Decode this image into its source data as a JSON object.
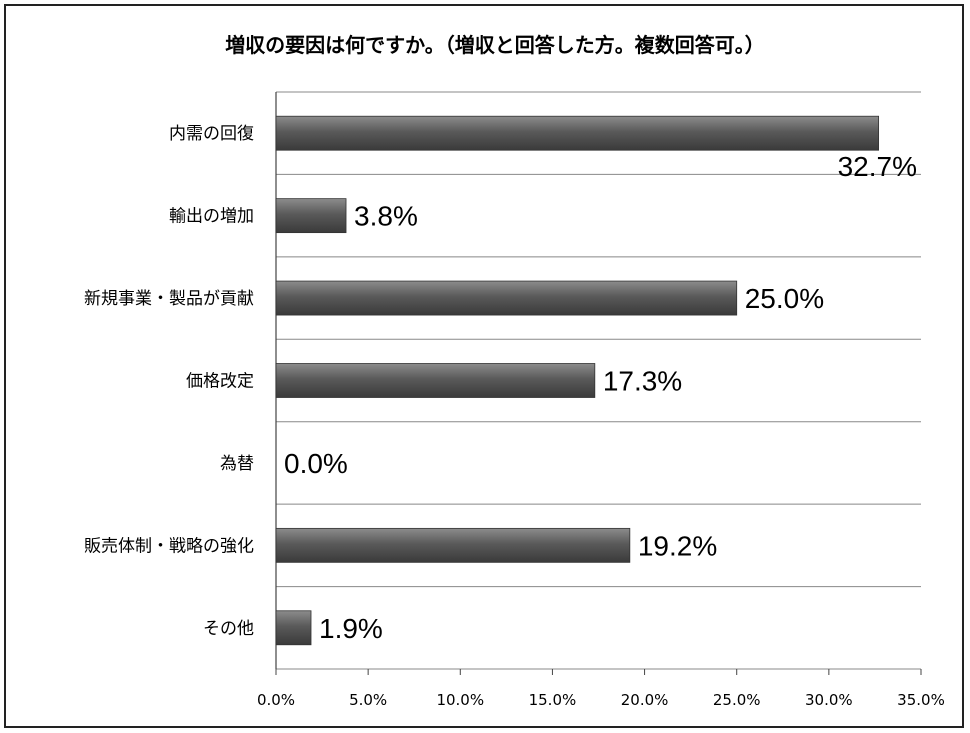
{
  "chart_data": {
    "type": "bar",
    "orientation": "horizontal",
    "title": "増収の要因は何ですか。（増収と回答した方。複数回答可。）",
    "categories": [
      "内需の回復",
      "輸出の増加",
      "新規事業・製品が貢献",
      "価格改定",
      "為替",
      "販売体制・戦略の強化",
      "その他"
    ],
    "values": [
      32.7,
      3.8,
      25.0,
      17.3,
      0.0,
      19.2,
      1.9
    ],
    "value_labels": [
      "32.7%",
      "3.8%",
      "25.0%",
      "17.3%",
      "0.0%",
      "19.2%",
      "1.9%"
    ],
    "xlim": [
      0,
      35
    ],
    "x_ticks": [
      0,
      5,
      10,
      15,
      20,
      25,
      30,
      35
    ],
    "x_tick_labels": [
      "0.0%",
      "5.0%",
      "10.0%",
      "15.0%",
      "20.0%",
      "25.0%",
      "30.0%",
      "35.0%"
    ],
    "grid": true,
    "legend": "none",
    "colors": {
      "bar": "#5a5a5a",
      "bar_light": "#8c8c8c",
      "bar_dark": "#3a3a3a",
      "grid": "#888888"
    }
  }
}
